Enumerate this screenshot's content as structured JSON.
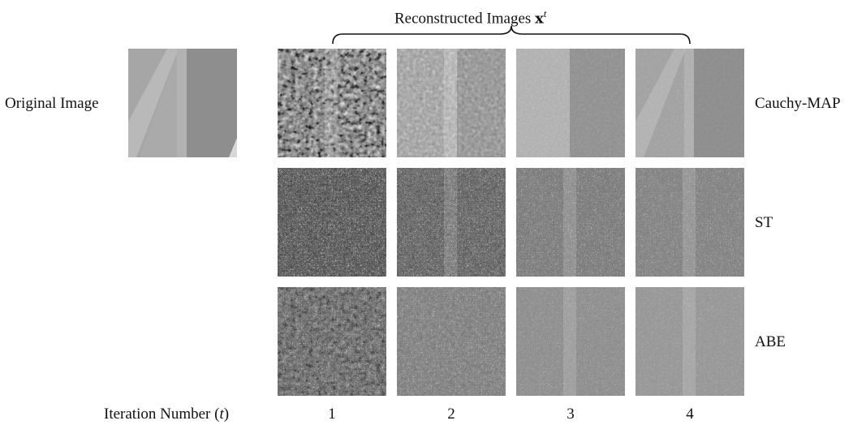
{
  "figure": {
    "title_text": "Reconstructed Images ",
    "title_symbol": "x",
    "title_superscript": "t",
    "original_label": "Original Image",
    "rows": [
      {
        "label": "Cauchy-MAP"
      },
      {
        "label": "ST"
      },
      {
        "label": "ABE"
      }
    ],
    "iteration_label_prefix": "Iteration Number (",
    "iteration_label_var": "t",
    "iteration_label_suffix": ")",
    "columns": [
      "1",
      "2",
      "3",
      "4"
    ]
  }
}
